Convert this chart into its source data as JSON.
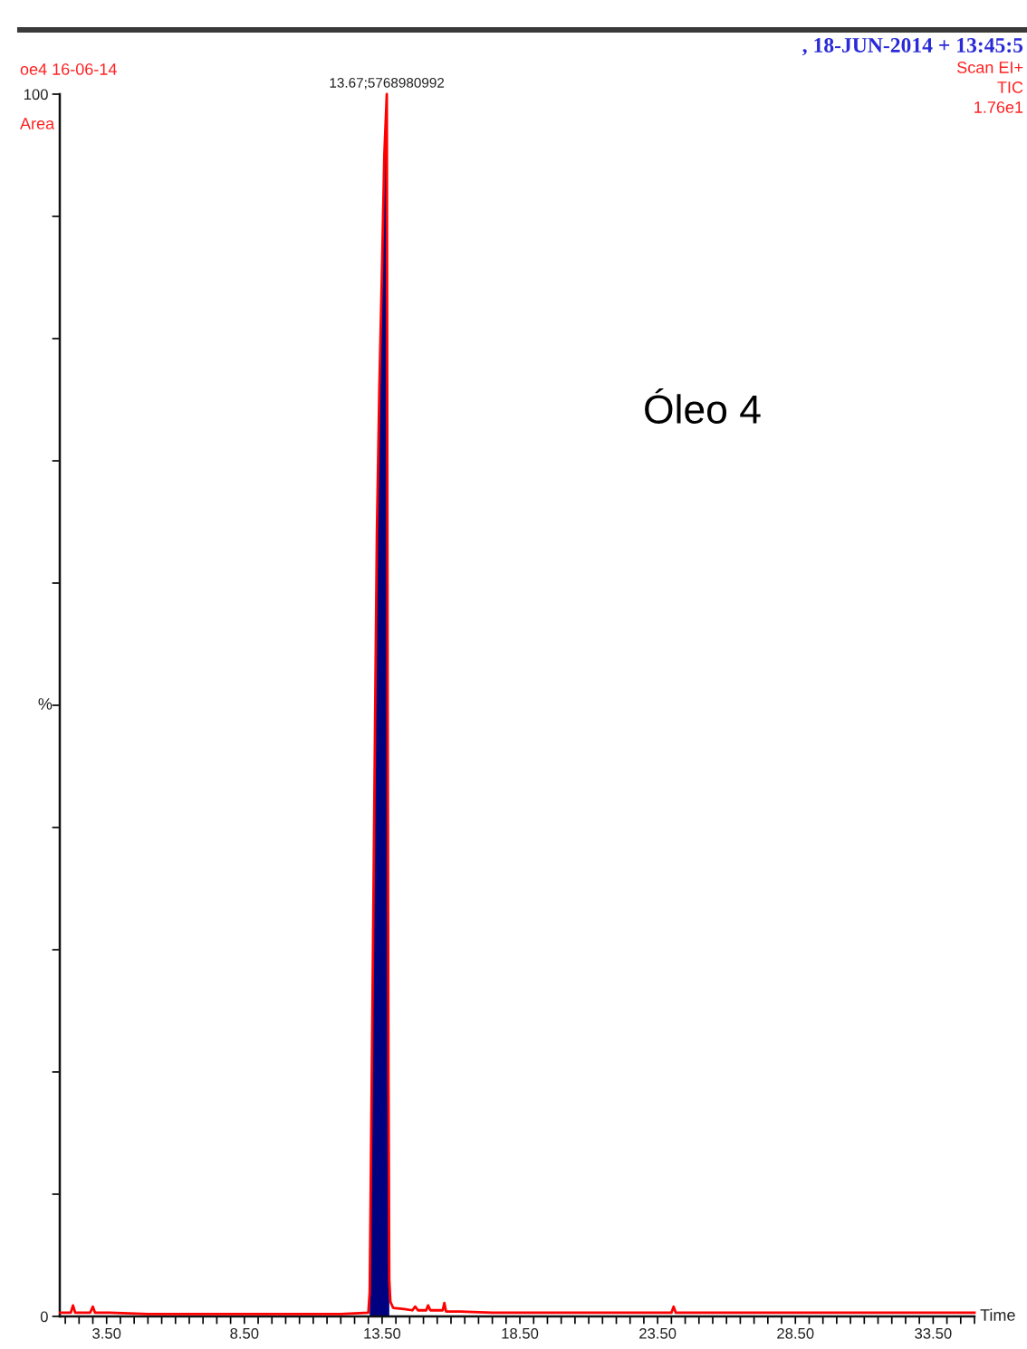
{
  "chart_data": {
    "type": "line",
    "title": ", 18-JUN-2014 + 13:45:5",
    "xlabel": "Time",
    "ylabel": "%",
    "annotations": [
      "oe4 16-06-14",
      "Area",
      "Scan EI+",
      "TIC",
      "1.76e1",
      "Óleo 4",
      {
        "text": "13.67;5768980992",
        "x": 13.67,
        "y": 100
      }
    ],
    "xlim": [
      1.8,
      35.0
    ],
    "ylim": [
      0,
      100
    ],
    "xticks": [
      {
        "value": 2,
        "label": null
      },
      {
        "value": 2.5,
        "label": null
      },
      {
        "value": 3,
        "label": null
      },
      {
        "value": 3.5,
        "label": "3.50"
      },
      {
        "value": 4,
        "label": null
      },
      {
        "value": 4.5,
        "label": null
      },
      {
        "value": 5,
        "label": null
      },
      {
        "value": 5.5,
        "label": null
      },
      {
        "value": 6,
        "label": null
      },
      {
        "value": 6.5,
        "label": null
      },
      {
        "value": 7,
        "label": null
      },
      {
        "value": 7.5,
        "label": null
      },
      {
        "value": 8,
        "label": null
      },
      {
        "value": 8.5,
        "label": "8.50"
      },
      {
        "value": 9,
        "label": null
      },
      {
        "value": 9.5,
        "label": null
      },
      {
        "value": 10,
        "label": null
      },
      {
        "value": 10.5,
        "label": null
      },
      {
        "value": 11,
        "label": null
      },
      {
        "value": 11.5,
        "label": null
      },
      {
        "value": 12,
        "label": null
      },
      {
        "value": 12.5,
        "label": null
      },
      {
        "value": 13,
        "label": null
      },
      {
        "value": 13.5,
        "label": "13.50"
      },
      {
        "value": 14,
        "label": null
      },
      {
        "value": 14.5,
        "label": null
      },
      {
        "value": 15,
        "label": null
      },
      {
        "value": 15.5,
        "label": null
      },
      {
        "value": 16,
        "label": null
      },
      {
        "value": 16.5,
        "label": null
      },
      {
        "value": 17,
        "label": null
      },
      {
        "value": 17.5,
        "label": null
      },
      {
        "value": 18,
        "label": null
      },
      {
        "value": 18.5,
        "label": "18.50"
      },
      {
        "value": 19,
        "label": null
      },
      {
        "value": 19.5,
        "label": null
      },
      {
        "value": 20,
        "label": null
      },
      {
        "value": 20.5,
        "label": null
      },
      {
        "value": 21,
        "label": null
      },
      {
        "value": 21.5,
        "label": null
      },
      {
        "value": 22,
        "label": null
      },
      {
        "value": 22.5,
        "label": null
      },
      {
        "value": 23,
        "label": null
      },
      {
        "value": 23.5,
        "label": "23.50"
      },
      {
        "value": 24,
        "label": null
      },
      {
        "value": 24.5,
        "label": null
      },
      {
        "value": 25,
        "label": null
      },
      {
        "value": 25.5,
        "label": null
      },
      {
        "value": 26,
        "label": null
      },
      {
        "value": 26.5,
        "label": null
      },
      {
        "value": 27,
        "label": null
      },
      {
        "value": 27.5,
        "label": null
      },
      {
        "value": 28,
        "label": null
      },
      {
        "value": 28.5,
        "label": "28.50"
      },
      {
        "value": 29,
        "label": null
      },
      {
        "value": 29.5,
        "label": null
      },
      {
        "value": 30,
        "label": null
      },
      {
        "value": 30.5,
        "label": null
      },
      {
        "value": 31,
        "label": null
      },
      {
        "value": 31.5,
        "label": null
      },
      {
        "value": 32,
        "label": null
      },
      {
        "value": 32.5,
        "label": null
      },
      {
        "value": 33,
        "label": null
      },
      {
        "value": 33.5,
        "label": "33.50"
      },
      {
        "value": 34,
        "label": null
      },
      {
        "value": 34.5,
        "label": null
      },
      {
        "value": 35,
        "label": null
      }
    ],
    "yticks": [
      0,
      {
        "value": 10,
        "label": null
      },
      {
        "value": 20,
        "label": null
      },
      {
        "value": 30,
        "label": null
      },
      {
        "value": 40,
        "label": null
      },
      {
        "value": 50,
        "label": null
      },
      {
        "value": 60,
        "label": null
      },
      {
        "value": 70,
        "label": null
      },
      {
        "value": 80,
        "label": null
      },
      {
        "value": 90,
        "label": null
      },
      100
    ],
    "series": [
      {
        "type": "area",
        "color": "#000080",
        "x": [
          13.05,
          13.16,
          13.25,
          13.31,
          13.4,
          13.49,
          13.58,
          13.67,
          13.7,
          13.73,
          13.76
        ],
        "values": [
          2,
          28,
          50,
          64,
          76,
          85,
          95,
          100,
          50,
          20,
          3
        ]
      },
      {
        "color": "#ff0000",
        "x": [
          1.82,
          2.2,
          2.28,
          2.36,
          2.9,
          3.0,
          3.08,
          3.6,
          5,
          8,
          10,
          12,
          13.0,
          13.05,
          13.16,
          13.25,
          13.31,
          13.4,
          13.49,
          13.58,
          13.67,
          13.7,
          13.73,
          13.76,
          13.8,
          13.9,
          14.3,
          14.6,
          14.7,
          14.8,
          15.1,
          15.17,
          15.25,
          15.7,
          15.76,
          15.82,
          16.3,
          17.5,
          19,
          21,
          23,
          24.0,
          24.08,
          24.16,
          26,
          28,
          30,
          32,
          34,
          35.0
        ],
        "values": [
          0.3,
          0.3,
          0.9,
          0.3,
          0.3,
          0.8,
          0.3,
          0.3,
          0.2,
          0.2,
          0.2,
          0.2,
          0.3,
          2,
          28,
          50,
          64,
          76,
          85,
          95,
          100,
          50,
          20,
          3,
          1.2,
          0.7,
          0.6,
          0.5,
          0.8,
          0.5,
          0.5,
          0.9,
          0.5,
          0.5,
          1.1,
          0.4,
          0.4,
          0.3,
          0.3,
          0.3,
          0.3,
          0.3,
          0.8,
          0.3,
          0.3,
          0.3,
          0.3,
          0.3,
          0.3,
          0.3
        ]
      }
    ]
  }
}
